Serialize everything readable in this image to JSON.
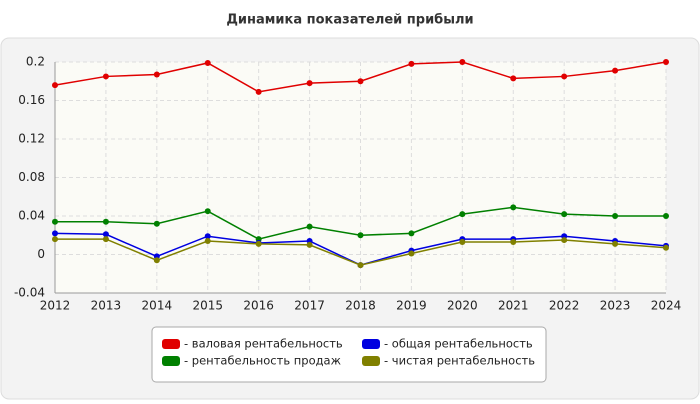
{
  "chart_data": {
    "type": "line",
    "title": "Динамика показателей прибыли",
    "categories": [
      "2012",
      "2013",
      "2014",
      "2015",
      "2016",
      "2017",
      "2018",
      "2019",
      "2020",
      "2021",
      "2022",
      "2023",
      "2024"
    ],
    "series": [
      {
        "name": "- валовая рентабельность",
        "color": "#e00000",
        "values": [
          0.176,
          0.185,
          0.187,
          0.199,
          0.169,
          0.178,
          0.18,
          0.198,
          0.2,
          0.183,
          0.185,
          0.191,
          0.2
        ]
      },
      {
        "name": "- рентабельность продаж",
        "color": "#008000",
        "values": [
          0.034,
          0.034,
          0.032,
          0.045,
          0.016,
          0.029,
          0.02,
          0.022,
          0.042,
          0.049,
          0.042,
          0.04,
          0.04
        ]
      },
      {
        "name": "- общая рентабельность",
        "color": "#0000e0",
        "values": [
          0.022,
          0.021,
          -0.002,
          0.019,
          0.012,
          0.014,
          -0.011,
          0.004,
          0.016,
          0.016,
          0.019,
          0.014,
          0.009
        ]
      },
      {
        "name": "- чистая рентабельность",
        "color": "#808000",
        "values": [
          0.016,
          0.016,
          -0.006,
          0.014,
          0.011,
          0.01,
          -0.011,
          0.001,
          0.013,
          0.013,
          0.015,
          0.011,
          0.007
        ]
      }
    ],
    "ylim": [
      -0.04,
      0.2
    ],
    "yticks": [
      -0.04,
      0,
      0.04,
      0.08,
      0.12,
      0.16,
      0.2
    ],
    "grid": true
  }
}
